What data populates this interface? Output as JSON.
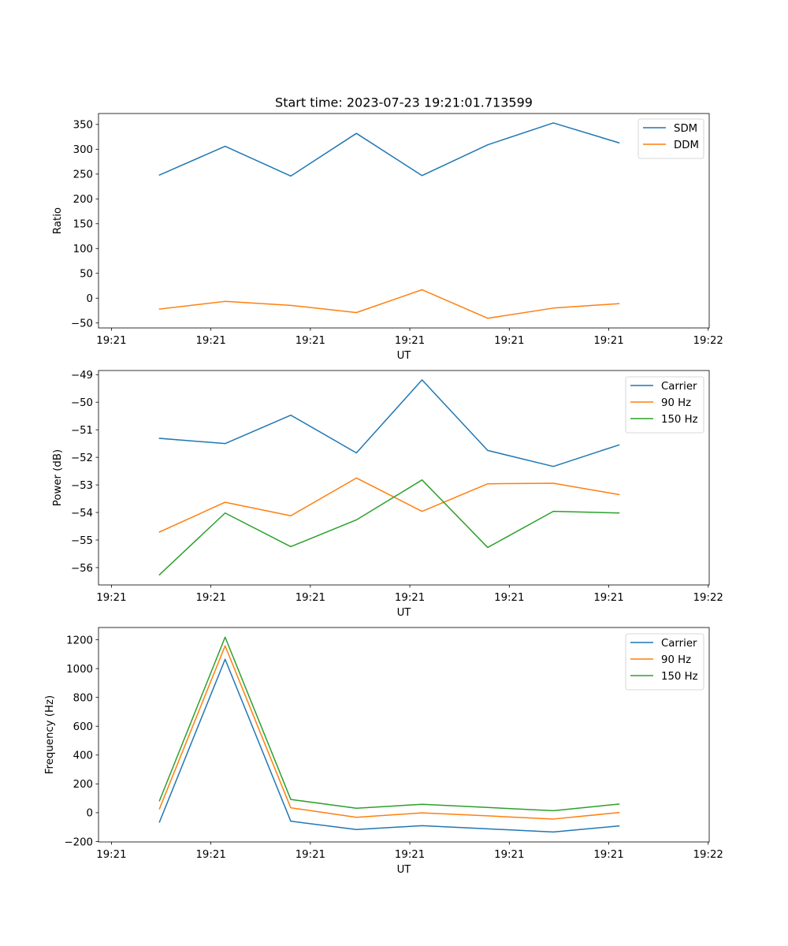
{
  "figure": {
    "title": "Start time: 2023-07-23 19:21:01.713599"
  },
  "chart_data": [
    {
      "type": "line",
      "title": "Start time: 2023-07-23 19:21:01.713599",
      "xlabel": "UT",
      "ylabel": "Ratio",
      "x_units": "seconds after 19:21:00",
      "x": [
        4.83,
        11.43,
        18.03,
        24.63,
        31.23,
        37.83,
        44.43,
        51.03
      ],
      "xlim": [
        -1.3,
        60.1
      ],
      "xticks": [
        0,
        10,
        20,
        30,
        40,
        50,
        60
      ],
      "xtick_labels": [
        "19:21",
        "19:21",
        "19:21",
        "19:21",
        "19:21",
        "19:21",
        "19:22"
      ],
      "ylim": [
        -60,
        372
      ],
      "yticks": [
        -50,
        0,
        50,
        100,
        150,
        200,
        250,
        300,
        350
      ],
      "ytick_labels": [
        "−50",
        "0",
        "50",
        "100",
        "150",
        "200",
        "250",
        "300",
        "350"
      ],
      "legend_position": "top-right",
      "grid": false,
      "series": [
        {
          "name": "SDM",
          "color": "#1f77b4",
          "values": [
            248,
            306,
            246,
            332,
            247,
            309,
            353,
            313
          ]
        },
        {
          "name": "DDM",
          "color": "#ff7f0e",
          "values": [
            -22,
            -6.5,
            -14.5,
            -29,
            17,
            -40.5,
            -20,
            -11
          ]
        }
      ]
    },
    {
      "type": "line",
      "title": "",
      "xlabel": "UT",
      "ylabel": "Power (dB)",
      "x_units": "seconds after 19:21:00",
      "x": [
        4.83,
        11.43,
        18.03,
        24.63,
        31.23,
        37.83,
        44.43,
        51.03
      ],
      "xlim": [
        -1.3,
        60.1
      ],
      "xticks": [
        0,
        10,
        20,
        30,
        40,
        50,
        60
      ],
      "xtick_labels": [
        "19:21",
        "19:21",
        "19:21",
        "19:21",
        "19:21",
        "19:21",
        "19:22"
      ],
      "ylim": [
        -56.63,
        -48.85
      ],
      "yticks": [
        -56,
        -55,
        -54,
        -53,
        -52,
        -51,
        -50,
        -49
      ],
      "ytick_labels": [
        "−56",
        "−55",
        "−54",
        "−53",
        "−52",
        "−51",
        "−50",
        "−49"
      ],
      "legend_position": "top-right",
      "grid": false,
      "series": [
        {
          "name": "Carrier",
          "color": "#1f77b4",
          "values": [
            -51.31,
            -51.5,
            -50.47,
            -51.84,
            -49.19,
            -51.75,
            -52.33,
            -51.55
          ]
        },
        {
          "name": "90 Hz",
          "color": "#ff7f0e",
          "values": [
            -54.71,
            -53.63,
            -54.12,
            -52.75,
            -53.96,
            -52.96,
            -52.94,
            -53.35
          ]
        },
        {
          "name": "150 Hz",
          "color": "#2ca02c",
          "values": [
            -56.26,
            -54.02,
            -55.24,
            -54.27,
            -52.82,
            -55.27,
            -53.96,
            -54.02
          ]
        }
      ]
    },
    {
      "type": "line",
      "title": "",
      "xlabel": "UT",
      "ylabel": "Frequency (Hz)",
      "x_units": "seconds after 19:21:00",
      "x": [
        4.83,
        11.43,
        18.03,
        24.63,
        31.23,
        37.83,
        44.43,
        51.03
      ],
      "xlim": [
        -1.3,
        60.1
      ],
      "xticks": [
        0,
        10,
        20,
        30,
        40,
        50,
        60
      ],
      "xtick_labels": [
        "19:21",
        "19:21",
        "19:21",
        "19:21",
        "19:21",
        "19:21",
        "19:22"
      ],
      "ylim": [
        -203,
        1285
      ],
      "yticks": [
        -200,
        0,
        200,
        400,
        600,
        800,
        1000,
        1200
      ],
      "ytick_labels": [
        "−200",
        "0",
        "200",
        "400",
        "600",
        "800",
        "1000",
        "1200"
      ],
      "legend_position": "top-right",
      "grid": false,
      "series": [
        {
          "name": "Carrier",
          "color": "#1f77b4",
          "values": [
            -65,
            1065,
            -59,
            -117,
            -90,
            -112,
            -134,
            -92
          ]
        },
        {
          "name": "90 Hz",
          "color": "#ff7f0e",
          "values": [
            27,
            1158,
            34,
            -32,
            -1,
            -22,
            -44,
            1
          ]
        },
        {
          "name": "150 Hz",
          "color": "#2ca02c",
          "values": [
            83,
            1218,
            92,
            31,
            58,
            36,
            14,
            60
          ]
        }
      ]
    }
  ]
}
